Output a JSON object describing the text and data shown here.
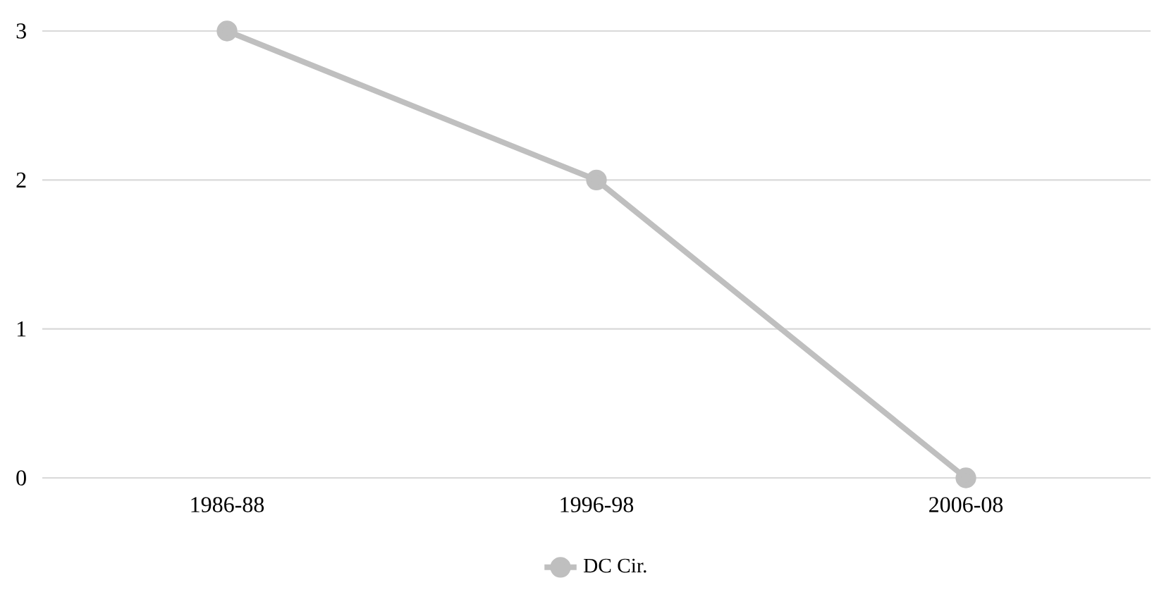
{
  "chart_data": {
    "type": "line",
    "categories": [
      "1986-88",
      "1996-98",
      "2006-08"
    ],
    "series": [
      {
        "name": "DC Cir.",
        "color": "#bfbfbf",
        "values": [
          3,
          2,
          0
        ]
      }
    ],
    "ylim": [
      0,
      3
    ],
    "yticks": [
      0,
      1,
      2,
      3
    ],
    "grid": "y",
    "legend": "bottom",
    "marker": "circle",
    "line_style": "solid"
  }
}
